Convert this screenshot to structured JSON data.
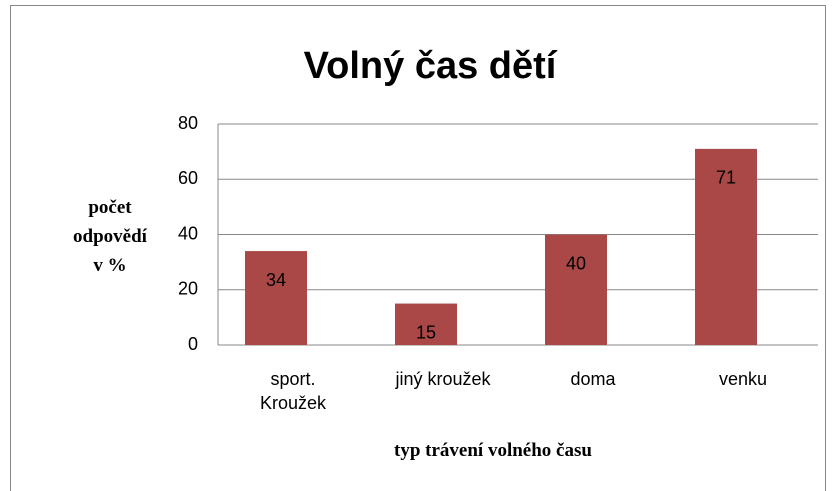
{
  "chart_data": {
    "type": "bar",
    "title": "Volný čas dětí",
    "x_label": "typ trávení volného času",
    "y_label": "počet\nodpovědí\nv %",
    "categories": [
      "sport.\nKroužek",
      "jiný kroužek",
      "doma",
      "venku"
    ],
    "values": [
      34,
      15,
      40,
      71
    ],
    "color": "#a94846",
    "ylim": [
      0,
      80
    ],
    "yticks": [
      0,
      20,
      40,
      60,
      80
    ],
    "grid": true
  }
}
